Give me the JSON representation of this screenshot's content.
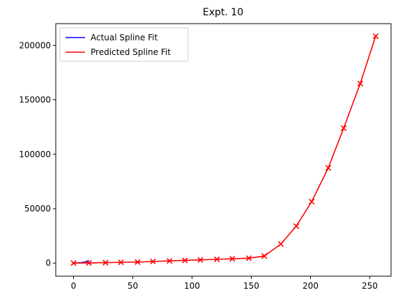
{
  "chart_data": {
    "type": "line",
    "title": "Expt. 10",
    "xlabel": "",
    "ylabel": "",
    "xlim": [
      -15,
      268
    ],
    "ylim": [
      -12000,
      220000
    ],
    "xticks": [
      0,
      50,
      100,
      150,
      200,
      250
    ],
    "yticks": [
      0,
      50000,
      100000,
      150000,
      200000
    ],
    "grid": false,
    "legend_position": "upper-left",
    "series": [
      {
        "name": "Actual Spline Fit",
        "color": "#0000ff",
        "marker": "none",
        "x": [
          0,
          1,
          2,
          3,
          4,
          5,
          6,
          7,
          8,
          9,
          10,
          11,
          12,
          13
        ],
        "y": [
          0,
          50,
          100,
          150,
          250,
          350,
          450,
          550,
          700,
          850,
          1050,
          1300,
          1700,
          2300
        ]
      },
      {
        "name": "Predicted Spline Fit",
        "color": "#ff0000",
        "marker": "x",
        "x": [
          0,
          13,
          27,
          40,
          54,
          67,
          81,
          94,
          107,
          121,
          134,
          148,
          161,
          175,
          188,
          201,
          215,
          228,
          242,
          255
        ],
        "y": [
          0,
          200,
          400,
          700,
          1000,
          1500,
          2000,
          2500,
          3000,
          3500,
          4000,
          4500,
          6500,
          17500,
          34000,
          56500,
          87500,
          124000,
          165000,
          208500
        ]
      }
    ]
  }
}
